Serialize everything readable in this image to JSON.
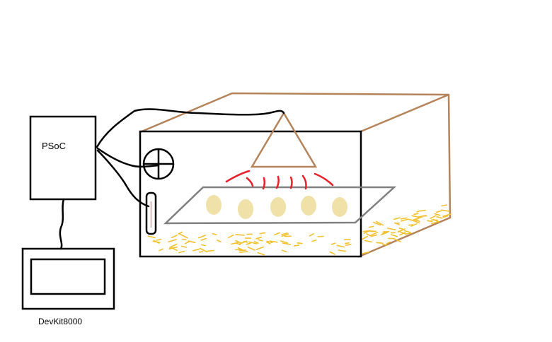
{
  "labels": {
    "controller": "PSoC",
    "display_device": "DevKit8000"
  },
  "colors": {
    "wire": "#000000",
    "box_edge": "#b5835a",
    "tray": "#808080",
    "egg": "#efe1a8",
    "heat_rays": "#e8202a",
    "straw": "#f2c12e"
  },
  "icons": {
    "fan": "fan-icon",
    "thermometer": "thermometer-icon",
    "heat_lamp": "heat-lamp-icon"
  }
}
